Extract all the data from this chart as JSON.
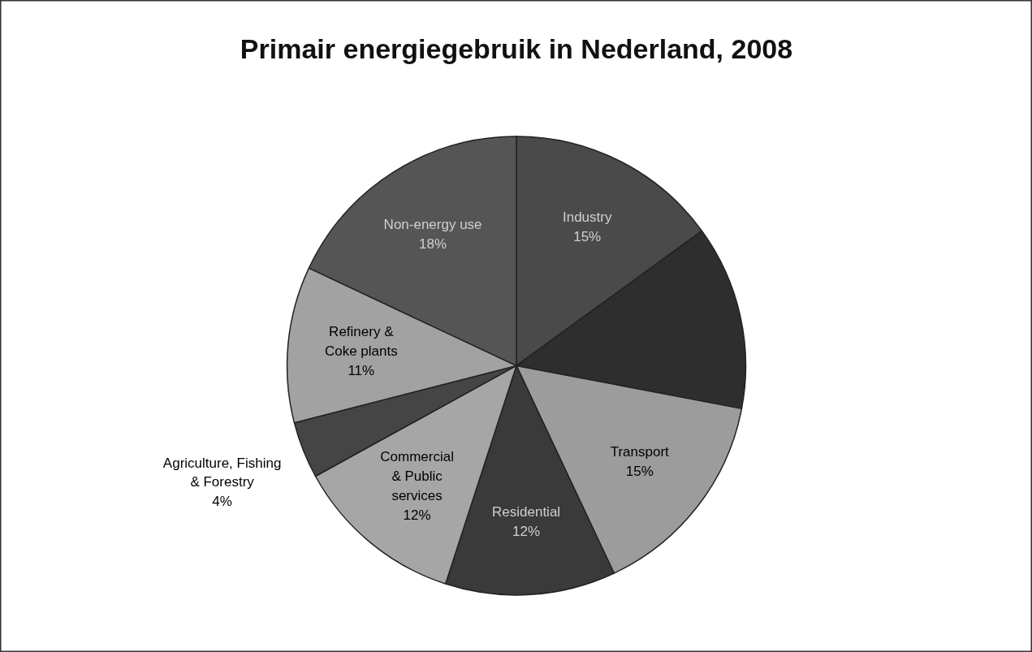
{
  "chart_data": {
    "type": "pie",
    "title": "Primair energiegebruik in Nederland, 2008",
    "categories": [
      "Industry",
      null,
      "Transport",
      "Residential",
      "Commercial\n& Public\nservices",
      "Agriculture, Fishing\n& Forestry",
      "Refinery &\nCoke plants",
      "Non-energy use"
    ],
    "values": [
      15,
      13,
      15,
      12,
      12,
      4,
      11,
      18
    ],
    "value_labels": [
      "15%",
      null,
      "15%",
      "12%",
      "12%",
      "4%",
      "11%",
      "18%"
    ],
    "colors": [
      "#4a4a4a",
      "#2e2e2e",
      "#9c9c9c",
      "#3a3a3a",
      "#a6a6a6",
      "#454545",
      "#a2a2a2",
      "#555555"
    ]
  }
}
